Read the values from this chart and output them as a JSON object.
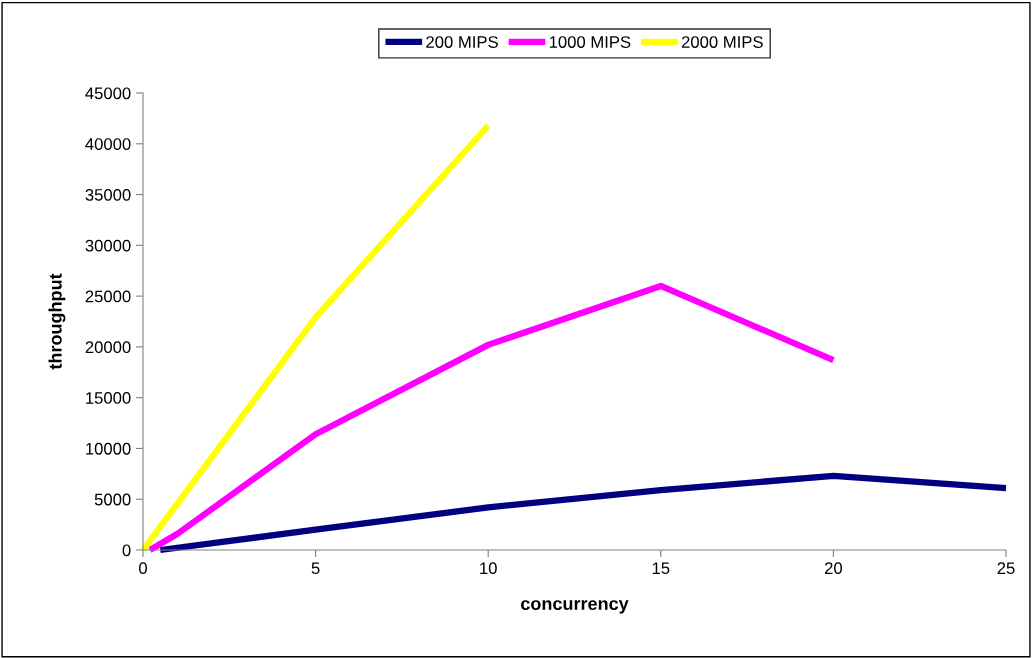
{
  "chart_data": {
    "type": "line",
    "xlabel": "concurrency",
    "ylabel": "throughput",
    "xlim": [
      0,
      25
    ],
    "xticks": [
      0,
      5,
      10,
      15,
      20,
      25
    ],
    "ylim": [
      0,
      45000
    ],
    "yticks": [
      0,
      5000,
      10000,
      15000,
      20000,
      25000,
      30000,
      35000,
      40000,
      45000
    ],
    "grid": false,
    "legend": "top",
    "marker": "none",
    "line_style": "solid",
    "series": [
      {
        "name": "200 MIPS",
        "color": "#000080",
        "x": [
          0.5,
          5,
          10,
          15,
          20,
          25
        ],
        "values": [
          0,
          2000,
          4200,
          5900,
          7300,
          6100
        ]
      },
      {
        "name": "1000 MIPS",
        "color": "#ff00ff",
        "x": [
          0.2,
          1,
          5,
          10,
          15,
          20
        ],
        "values": [
          0,
          1600,
          11400,
          20200,
          26000,
          18700
        ]
      },
      {
        "name": "2000 MIPS",
        "color": "#ffff00",
        "x": [
          0,
          5,
          10
        ],
        "values": [
          0,
          22900,
          41800
        ]
      }
    ]
  }
}
